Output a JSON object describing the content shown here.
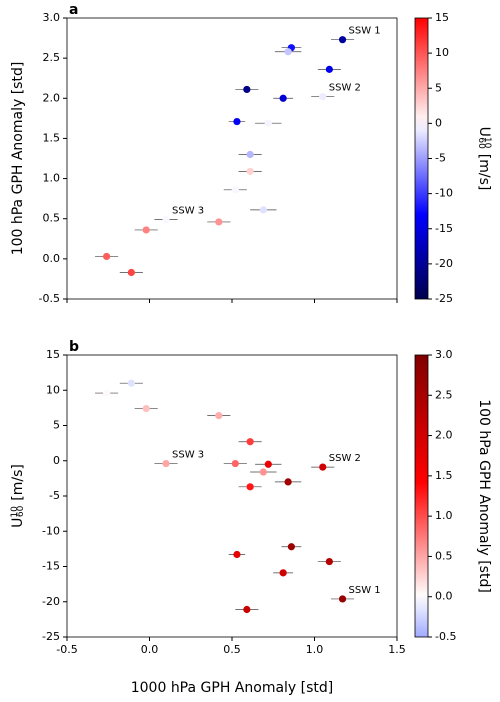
{
  "chart_data": [
    {
      "type": "scatter",
      "panel": "a",
      "ylabel": "100 hPa GPH Anomaly [std]",
      "x": [
        1.17,
        0.86,
        1.09,
        1.05,
        0.59,
        0.81,
        0.53,
        0.72,
        0.84,
        0.61,
        0.61,
        0.52,
        0.69,
        0.42,
        0.1,
        -0.02,
        -0.26,
        -0.11
      ],
      "xerr": [
        0.07,
        0.06,
        0.07,
        0.07,
        0.07,
        0.06,
        0.05,
        0.08,
        0.08,
        0.07,
        0.07,
        0.07,
        0.08,
        0.07,
        0.07,
        0.07,
        0.07,
        0.07
      ],
      "y": [
        2.73,
        2.63,
        2.36,
        2.02,
        2.11,
        2.0,
        1.71,
        1.69,
        2.58,
        1.3,
        1.09,
        0.86,
        0.61,
        0.46,
        0.49,
        0.36,
        0.03,
        -0.17
      ],
      "c": [
        -19.6,
        -12.2,
        -14.3,
        -0.9,
        -21.1,
        -15.9,
        -13.3,
        -0.5,
        -3.0,
        -3.7,
        2.7,
        -0.4,
        -1.6,
        6.4,
        -0.4,
        7.4,
        9.6,
        11.0
      ],
      "point_labels": [
        "SSW 1",
        null,
        null,
        "SSW 2",
        null,
        null,
        null,
        null,
        null,
        null,
        null,
        null,
        null,
        null,
        "SSW 3",
        null,
        null,
        null
      ],
      "xlim": [
        -0.5,
        1.5
      ],
      "ylim": [
        -0.5,
        3.0
      ],
      "xticks": [
        -0.5,
        0,
        0.5,
        1,
        1.5
      ],
      "yticks": [
        -0.5,
        {
          "value": 0,
          "label": "0.0"
        },
        0.5,
        {
          "value": 1,
          "label": "1.0"
        },
        1.5,
        {
          "value": 2,
          "label": "2.0"
        },
        2.5,
        {
          "value": 3,
          "label": "3.0"
        }
      ],
      "colorbar": {
        "label": {
          "base": "U",
          "sup": "10",
          "sub": "60",
          "unit": "[m/s]"
        },
        "clim": [
          -25,
          15
        ],
        "ticks": [
          -25,
          -20,
          -15,
          -10,
          -5,
          0,
          5,
          10,
          15
        ],
        "cmap": "seismic"
      }
    },
    {
      "type": "scatter",
      "panel": "b",
      "xlabel": "1000 hPa GPH Anomaly [std]",
      "ylabel": {
        "base": "U",
        "sup": "10",
        "sub": "60",
        "unit": "[m/s]"
      },
      "x": [
        1.17,
        0.86,
        1.09,
        1.05,
        0.59,
        0.81,
        0.53,
        0.72,
        0.84,
        0.61,
        0.61,
        0.52,
        0.69,
        0.42,
        0.1,
        -0.02,
        -0.26,
        -0.11
      ],
      "xerr": [
        0.07,
        0.06,
        0.07,
        0.07,
        0.07,
        0.06,
        0.05,
        0.08,
        0.08,
        0.07,
        0.07,
        0.07,
        0.08,
        0.07,
        0.07,
        0.07,
        0.07,
        0.07
      ],
      "y": [
        -19.6,
        -12.2,
        -14.3,
        -0.9,
        -21.1,
        -15.9,
        -13.3,
        -0.5,
        -3.0,
        -3.7,
        2.7,
        -0.4,
        -1.6,
        6.4,
        -0.4,
        7.4,
        9.6,
        11.0
      ],
      "c": [
        2.73,
        2.63,
        2.36,
        2.02,
        2.11,
        2.0,
        1.71,
        1.69,
        2.58,
        1.3,
        1.09,
        0.86,
        0.61,
        0.46,
        0.49,
        0.36,
        0.03,
        -0.17
      ],
      "point_labels": [
        "SSW 1",
        null,
        null,
        "SSW 2",
        null,
        null,
        null,
        null,
        null,
        null,
        null,
        null,
        null,
        null,
        "SSW 3",
        null,
        null,
        null
      ],
      "xlim": [
        -0.5,
        1.5
      ],
      "ylim": [
        -25,
        15
      ],
      "xticks": [
        -0.5,
        {
          "value": 0,
          "label": "0.0"
        },
        0.5,
        {
          "value": 1,
          "label": "1.0"
        },
        1.5
      ],
      "yticks": [
        -25,
        -20,
        -15,
        -10,
        -5,
        0,
        5,
        10,
        15
      ],
      "colorbar": {
        "label": "100 hPa GPH Anomaly [std]",
        "clim": [
          -0.5,
          3.0
        ],
        "ticks": [
          -0.5,
          {
            "value": 0,
            "label": "0.0"
          },
          0.5,
          {
            "value": 1,
            "label": "1.0"
          },
          1.5,
          {
            "value": 2,
            "label": "2.0"
          },
          2.5,
          {
            "value": 3,
            "label": "3.0"
          }
        ],
        "cmap": "bwr-dark"
      }
    }
  ]
}
